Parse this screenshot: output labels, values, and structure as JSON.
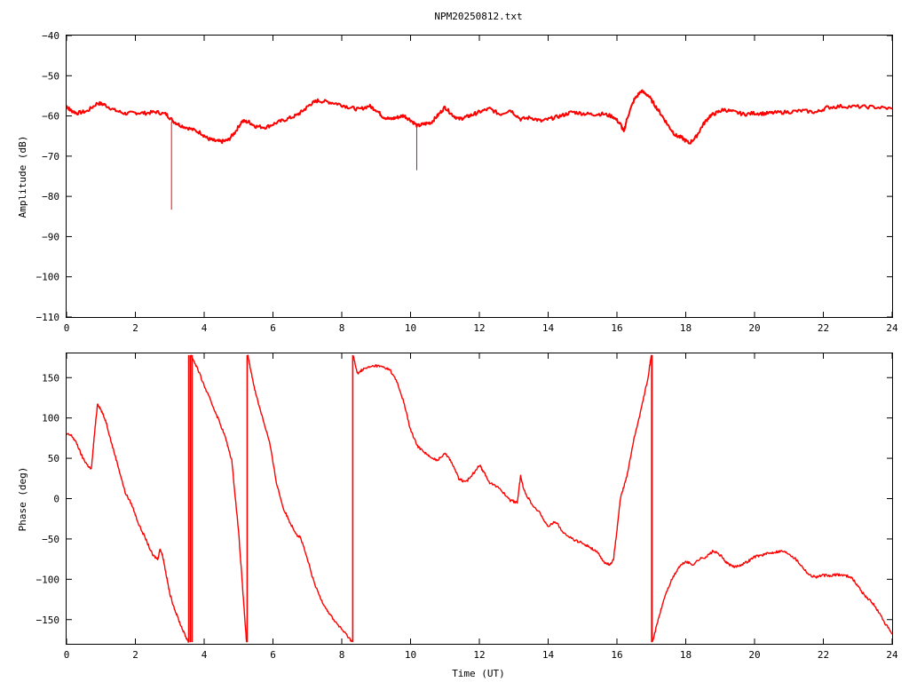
{
  "title": "NPM20250812.txt",
  "colors": {
    "series": "#ff0000",
    "axes": "#000000",
    "background": "#ffffff"
  },
  "chart_data": [
    {
      "type": "line",
      "title": "NPM20250812.txt",
      "xlabel": "",
      "ylabel": "Amplitude (dB)",
      "xlim": [
        0,
        24
      ],
      "ylim": [
        -110,
        -40
      ],
      "xticks": [
        0,
        2,
        4,
        6,
        8,
        10,
        12,
        14,
        16,
        18,
        20,
        22,
        24
      ],
      "yticks": [
        -110,
        -100,
        -90,
        -80,
        -70,
        -60,
        -50,
        -40
      ],
      "grid": false,
      "series": [
        {
          "x": [
            0.0,
            0.1,
            0.3,
            0.6,
            0.9,
            1.1,
            1.4,
            1.7,
            2.0,
            2.3,
            2.6,
            2.9,
            3.1,
            3.3,
            3.6,
            3.9,
            4.1,
            4.3,
            4.5,
            4.7,
            4.9,
            5.1,
            5.3,
            5.5,
            5.8,
            6.1,
            6.4,
            6.7,
            6.9,
            7.1,
            7.3,
            7.6,
            7.9,
            8.2,
            8.5,
            8.8,
            9.0,
            9.2,
            9.4,
            9.6,
            9.8,
            10.0,
            10.2,
            10.4,
            10.6,
            10.8,
            11.0,
            11.2,
            11.4,
            11.6,
            11.8,
            12.0,
            12.3,
            12.6,
            12.9,
            13.2,
            13.5,
            13.8,
            14.1,
            14.4,
            14.7,
            15.0,
            15.3,
            15.6,
            15.9,
            16.1,
            16.2,
            16.3,
            16.5,
            16.7,
            16.9,
            17.1,
            17.3,
            17.5,
            17.7,
            17.9,
            18.1,
            18.3,
            18.5,
            18.7,
            18.9,
            19.1,
            19.4,
            19.7,
            20.0,
            20.3,
            20.6,
            21.0,
            21.4,
            21.8,
            22.1,
            22.5,
            23.0,
            23.5,
            24.0
          ],
          "values": [
            -57.5,
            -58.5,
            -59.3,
            -58.8,
            -56.8,
            -57.2,
            -58.6,
            -59.4,
            -59.2,
            -59.3,
            -59.0,
            -59.6,
            -61.3,
            -62.3,
            -63.2,
            -64.2,
            -65.6,
            -66.2,
            -66.4,
            -66.0,
            -64.0,
            -61.3,
            -61.5,
            -62.6,
            -62.8,
            -61.7,
            -60.8,
            -59.8,
            -58.5,
            -57.0,
            -56.2,
            -56.5,
            -57.0,
            -57.8,
            -58.4,
            -57.5,
            -58.5,
            -60.2,
            -60.8,
            -60.4,
            -59.9,
            -61.0,
            -62.5,
            -62.0,
            -61.6,
            -59.8,
            -57.8,
            -59.6,
            -60.8,
            -60.3,
            -59.7,
            -59.0,
            -58.2,
            -59.6,
            -58.5,
            -60.8,
            -60.4,
            -61.3,
            -60.6,
            -59.9,
            -59.0,
            -59.4,
            -59.6,
            -59.5,
            -60.2,
            -62.0,
            -64.0,
            -60.4,
            -56.0,
            -53.8,
            -54.8,
            -57.3,
            -59.8,
            -62.5,
            -64.8,
            -65.5,
            -66.8,
            -65.2,
            -62.2,
            -60.0,
            -59.2,
            -58.4,
            -59.0,
            -59.6,
            -59.3,
            -59.4,
            -59.2,
            -59.0,
            -58.7,
            -59.1,
            -57.9,
            -57.6,
            -57.7,
            -57.8,
            -58.2
          ]
        }
      ],
      "spikes": [
        {
          "x": 3.05,
          "from": -61.5,
          "to": -83.3
        },
        {
          "x": 10.18,
          "from": -62.5,
          "to": -73.5
        }
      ]
    },
    {
      "type": "line",
      "title": "",
      "xlabel": "Time (UT)",
      "ylabel": "Phase (deg)",
      "xlim": [
        0,
        24
      ],
      "ylim": [
        -180,
        180
      ],
      "xticks": [
        0,
        2,
        4,
        6,
        8,
        10,
        12,
        14,
        16,
        18,
        20,
        22,
        24
      ],
      "yticks": [
        -150,
        -100,
        -50,
        0,
        50,
        100,
        150
      ],
      "grid": false,
      "series": [
        {
          "x": [
            0.0,
            0.15,
            0.3,
            0.45,
            0.6,
            0.72,
            0.8,
            0.9,
            1.0,
            1.15,
            1.3,
            1.5,
            1.7,
            1.9,
            2.1,
            2.3,
            2.5,
            2.65,
            2.72,
            2.8,
            2.9,
            3.0,
            3.15,
            3.3,
            3.45,
            3.55
          ],
          "values": [
            80,
            78,
            68,
            52,
            42,
            36,
            75,
            118,
            110,
            95,
            70,
            40,
            8,
            -8,
            -32,
            -50,
            -70,
            -75,
            -62,
            -72,
            -95,
            -118,
            -138,
            -155,
            -170,
            -178
          ]
        },
        {
          "x": [
            3.62,
            3.8,
            4.0,
            4.2,
            4.4,
            4.6,
            4.8,
            5.0,
            5.1,
            5.2,
            5.23
          ],
          "values": [
            178,
            162,
            140,
            120,
            100,
            78,
            48,
            -40,
            -100,
            -160,
            -178
          ]
        },
        {
          "x": [
            5.27,
            5.35,
            5.5,
            5.7,
            5.9,
            6.1,
            6.3,
            6.5,
            6.7,
            6.8,
            7.0,
            7.2,
            7.4,
            7.6,
            7.8,
            8.0,
            8.2,
            8.3
          ],
          "values": [
            178,
            160,
            130,
            100,
            70,
            20,
            -12,
            -30,
            -45,
            -48,
            -75,
            -105,
            -125,
            -140,
            -152,
            -162,
            -172,
            -177
          ]
        },
        {
          "x": [
            8.33,
            8.45,
            8.6,
            8.8,
            9.0,
            9.2,
            9.4,
            9.6,
            9.8,
            10.0,
            10.2,
            10.4,
            10.6,
            10.8,
            11.0,
            11.2,
            11.4,
            11.6,
            11.8,
            12.0,
            12.1,
            12.3,
            12.6,
            12.9,
            13.1,
            13.2,
            13.3,
            13.5,
            13.8,
            14.0,
            14.2,
            14.5,
            14.8,
            15.0,
            15.2,
            15.4,
            15.6,
            15.8,
            15.9,
            16.0,
            16.1,
            16.2,
            16.3,
            16.5,
            16.7,
            16.9,
            17.0
          ],
          "values": [
            178,
            155,
            160,
            163,
            165,
            163,
            160,
            145,
            120,
            85,
            65,
            58,
            50,
            48,
            57,
            45,
            25,
            20,
            30,
            42,
            35,
            20,
            12,
            -2,
            -5,
            28,
            10,
            -5,
            -20,
            -35,
            -28,
            -45,
            -52,
            -55,
            -60,
            -65,
            -78,
            -82,
            -75,
            -40,
            0,
            15,
            30,
            75,
            110,
            150,
            178
          ]
        },
        {
          "x": [
            17.03,
            17.2,
            17.4,
            17.6,
            17.8,
            18.0,
            18.2,
            18.4,
            18.6,
            18.8,
            19.0,
            19.2,
            19.4,
            19.6,
            19.8,
            20.0,
            20.2,
            20.4,
            20.6,
            20.8,
            21.0,
            21.2,
            21.4,
            21.6,
            21.8,
            22.0,
            22.2,
            22.4,
            22.6,
            22.8,
            23.0,
            23.2,
            23.4,
            23.6,
            23.8,
            24.0
          ],
          "values": [
            -178,
            -150,
            -120,
            -100,
            -85,
            -78,
            -82,
            -75,
            -72,
            -65,
            -70,
            -80,
            -85,
            -82,
            -78,
            -72,
            -70,
            -68,
            -66,
            -65,
            -68,
            -75,
            -85,
            -95,
            -97,
            -95,
            -96,
            -94,
            -95,
            -97,
            -108,
            -120,
            -128,
            -140,
            -155,
            -168
          ]
        }
      ],
      "vertical_jumps": [
        {
          "x": 3.55,
          "from": -178,
          "to": 178
        },
        {
          "x": 3.6,
          "from": -178,
          "to": 178
        },
        {
          "x": 3.65,
          "from": -178,
          "to": 178
        },
        {
          "x": 5.25,
          "from": -178,
          "to": 178
        },
        {
          "x": 8.32,
          "from": -178,
          "to": 178
        },
        {
          "x": 17.01,
          "from": -178,
          "to": 178
        },
        {
          "x": 17.02,
          "from": -178,
          "to": 178
        }
      ]
    }
  ]
}
